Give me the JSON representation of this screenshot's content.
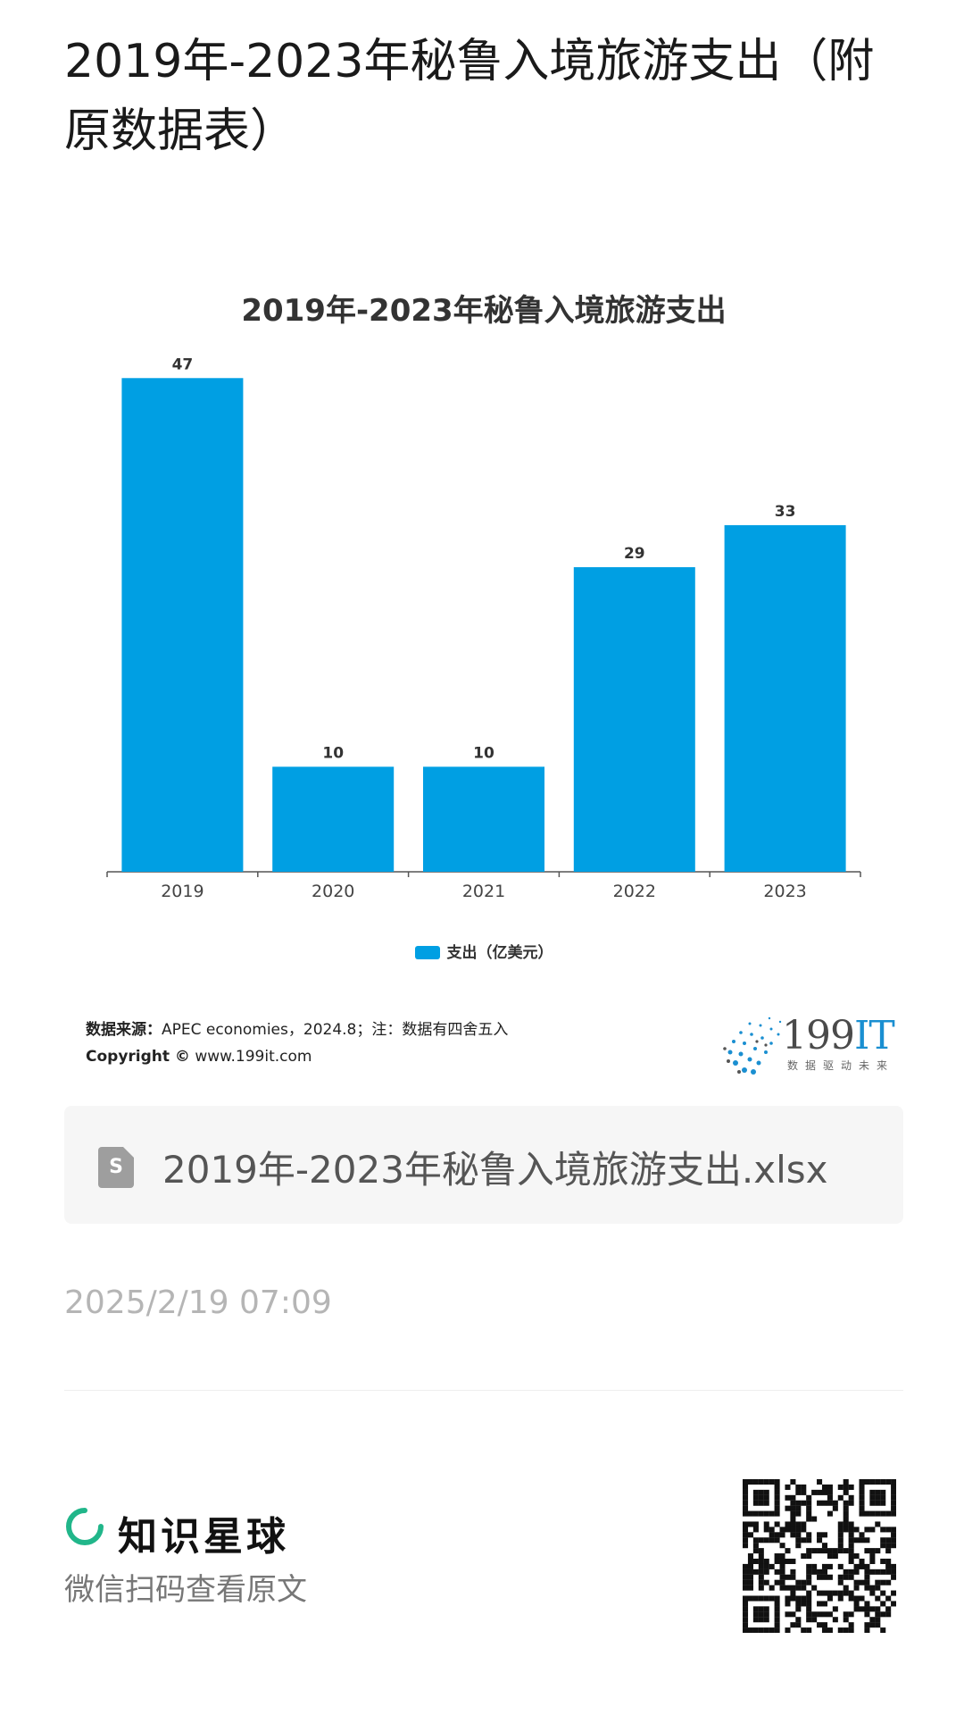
{
  "page": {
    "title": "2019年-2023年秘鲁入境旅游支出（附原数据表）"
  },
  "chart_data": {
    "type": "bar",
    "title": "2019年-2023年秘鲁入境旅游支出",
    "categories": [
      "2019",
      "2020",
      "2021",
      "2022",
      "2023"
    ],
    "series": [
      {
        "name": "支出（亿美元）",
        "values": [
          47,
          10,
          10,
          29,
          33
        ]
      }
    ],
    "data_labels": [
      "47",
      "10",
      "10",
      "29",
      "33"
    ],
    "ylim": [
      0,
      50
    ],
    "grid": false,
    "legend_position": "bottom",
    "bar_color": "#009fe3"
  },
  "legend": {
    "label": "支出（亿美元）"
  },
  "source": {
    "label": "数据来源：",
    "text": "APEC economies，2024.8；注：数据有四舍五入",
    "copyright_label": "Copyright ©",
    "copyright_site": "www.199it.com"
  },
  "logo": {
    "text": "199",
    "text_accent": "IT",
    "tagline": "数据驱动未来"
  },
  "attachment": {
    "icon": "spreadsheet-file-icon",
    "file_name": "2019年-2023年秘鲁入境旅游支出.xlsx"
  },
  "post": {
    "timestamp": "2025/2/19 07:09"
  },
  "footer": {
    "brand_name": "知识星球",
    "brand_icon": "knowledge-planet-logo-icon",
    "scan_hint": "微信扫码查看原文",
    "brand_color": "#21b68a"
  }
}
